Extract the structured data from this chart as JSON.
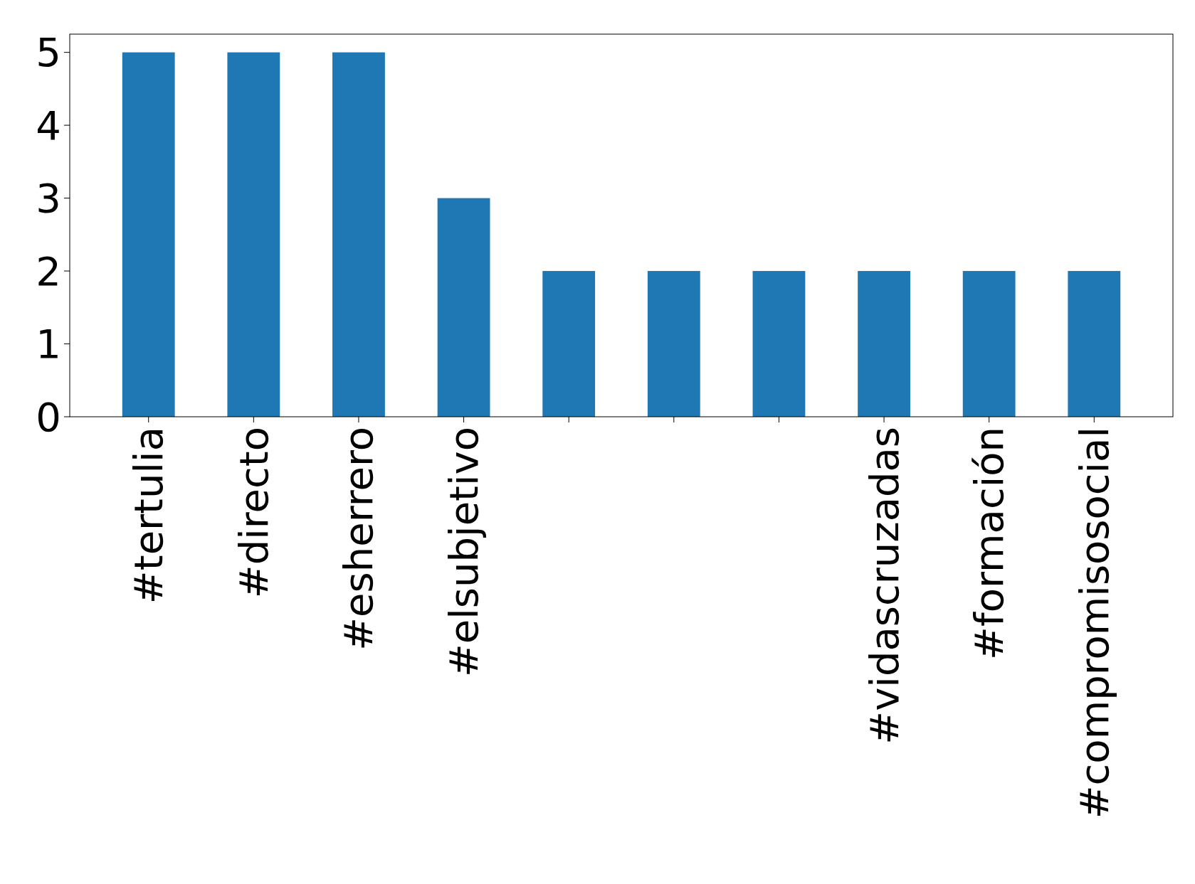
{
  "chart_data": {
    "type": "bar",
    "categories": [
      "#tertulia",
      "#directo",
      "#esherrero",
      "#elsubjetivo",
      null,
      null,
      null,
      "#vidascruzadas",
      "#formación",
      "#compromisosocial"
    ],
    "values": [
      5,
      5,
      5,
      3,
      2,
      2,
      2,
      2,
      2,
      2
    ],
    "color": "#1f77b4",
    "ylim": [
      0,
      5.25
    ],
    "yticks": [
      0,
      1,
      2,
      3,
      4,
      5
    ],
    "grid": false
  }
}
